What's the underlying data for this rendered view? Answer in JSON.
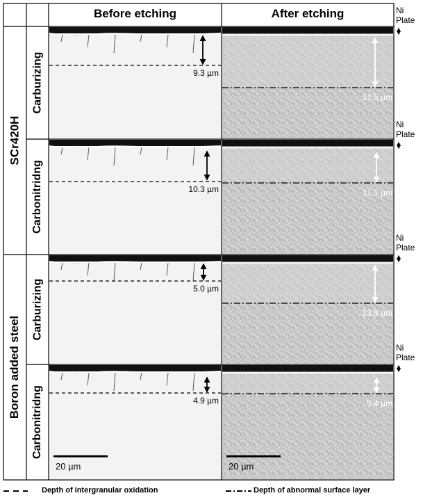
{
  "header": {
    "before": "Before etching",
    "after": "After etching"
  },
  "groups": [
    {
      "label": "SCr420H",
      "rows": [
        {
          "label": "Carburizing",
          "before_depth": "9.3 µm",
          "after_depth": "17.5 µm"
        },
        {
          "label": "Carbonitridng",
          "before_depth": "10.3 µm",
          "after_depth": "11.1 µm"
        }
      ]
    },
    {
      "label": "Boron added steel",
      "rows": [
        {
          "label": "Carburizing",
          "before_depth": "5.0 µm",
          "after_depth": "13.8 µm"
        },
        {
          "label": "Carbonitridng",
          "before_depth": "4.9 µm",
          "after_depth": "5.4 µm"
        }
      ]
    }
  ],
  "ni_plate": [
    "Ni Plate",
    "Ni Plate",
    "Ni Plate",
    "Ni Plate"
  ],
  "scale_bar": {
    "before": "20 µm",
    "after": "20 µm"
  },
  "legend": [
    {
      "label": "Depth of intergranular oxidation",
      "style": "dashed"
    },
    {
      "label": "Depth of abnormal surface layer",
      "style": "dash-dot"
    }
  ]
}
